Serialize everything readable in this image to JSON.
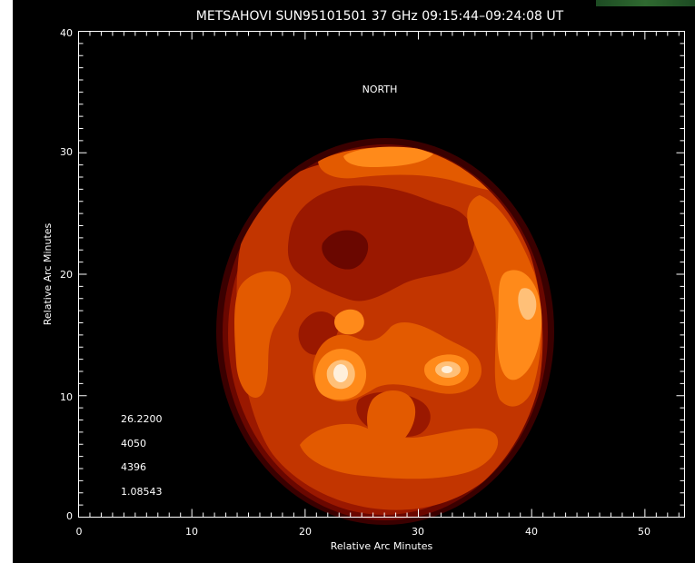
{
  "chart_data": {
    "type": "heatmap",
    "title": "METSAHOVI  SUN95101501 37 GHz 09:15:44–09:24:08 UT",
    "xlabel": "Relative Arc Minutes",
    "ylabel": "Relative Arc Minutes",
    "xlim": [
      0,
      53.5
    ],
    "ylim": [
      0,
      40
    ],
    "x_ticks": [
      "0",
      "10",
      "20",
      "30",
      "40",
      "50"
    ],
    "y_ticks": [
      "0",
      "10",
      "20",
      "30",
      "40"
    ],
    "annotations": [
      {
        "text": "NORTH"
      },
      {
        "text": "26.2200"
      },
      {
        "text": "4050"
      },
      {
        "text": "4396"
      },
      {
        "text": "1.08543"
      }
    ],
    "colors": {
      "background": "#000000",
      "level1": "#3a0000",
      "level2": "#6a0700",
      "level3": "#9a1800",
      "level4": "#c23500",
      "level5": "#e35a00",
      "level6": "#ff8a1a",
      "level7": "#ffc078",
      "level8": "#fff0dc"
    }
  }
}
